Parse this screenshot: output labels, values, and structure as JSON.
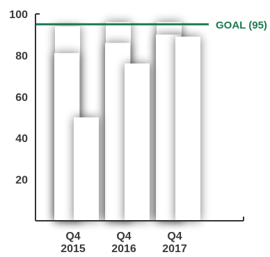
{
  "chart_data": {
    "type": "bar",
    "title": "",
    "xlabel": "",
    "ylabel": "",
    "ylim": [
      0,
      100
    ],
    "yticks": [
      20,
      40,
      60,
      80,
      100
    ],
    "grid": false,
    "categories": [
      {
        "line1": "Q4",
        "line2": "2015"
      },
      {
        "line1": "Q4",
        "line2": "2016"
      },
      {
        "line1": "Q4",
        "line2": "2017"
      }
    ],
    "series": [
      {
        "values": [
          94,
          96,
          96
        ]
      },
      {
        "values": [
          81,
          86,
          90
        ]
      },
      {
        "values": [
          50,
          76,
          89
        ]
      }
    ],
    "goal": {
      "value": 95,
      "label": "GOAL (95)"
    },
    "colors": {
      "axis": "#333333",
      "tick_label": "#3a3a3a",
      "goal": "#1a7a4f",
      "bar_fill": "#ffffff",
      "background": "#ffffff"
    }
  }
}
